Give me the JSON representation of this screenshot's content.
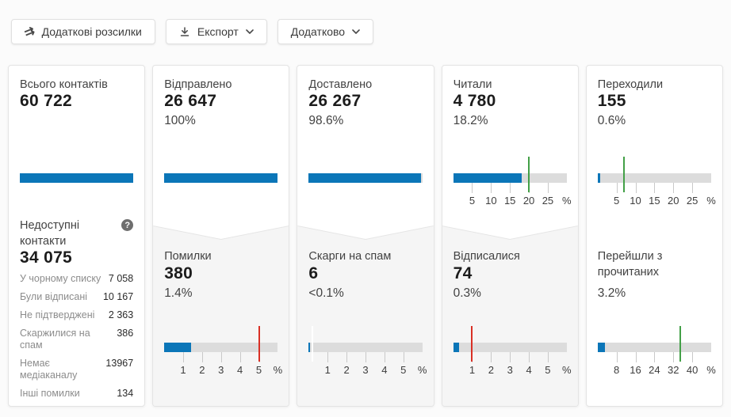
{
  "toolbar": {
    "mailings_button": "Додаткові розсилки",
    "export_button": "Експорт",
    "more_button": "Додатково"
  },
  "colors": {
    "bar_fill": "#0b76b8",
    "bar_track": "#dcdcdc",
    "marker_red": "#d93025",
    "marker_green": "#43a047",
    "marker_white": "#ffffff"
  },
  "cards": [
    {
      "title": "Всього контактів",
      "value": "60 722",
      "meter": {
        "value": 100,
        "max": 100,
        "ticks": [],
        "unit": ""
      },
      "bottom": {
        "title": "Недоступні контакти",
        "help_icon": "?",
        "value": "34 075",
        "rows": [
          {
            "label": "У чорному списку",
            "value": "7 058"
          },
          {
            "label": "Були відписані",
            "value": "10 167"
          },
          {
            "label": "Не підтверджені",
            "value": "2 363"
          },
          {
            "label": "Скаржилися на спам",
            "value": "386"
          },
          {
            "label": "Немає медіаканалу",
            "value": "13967"
          },
          {
            "label": "Інші помилки",
            "value": "134"
          }
        ]
      }
    },
    {
      "title": "Відправлено",
      "value": "26 647",
      "pct": "100%",
      "meter": {
        "value": 100,
        "max": 100,
        "ticks": [],
        "unit": ""
      },
      "bottom": {
        "title": "Помилки",
        "value": "380",
        "pct": "1.4%",
        "meter": {
          "value": 1.4,
          "max": 6,
          "tick_step": 1,
          "ticks": [
            "1",
            "2",
            "3",
            "4",
            "5"
          ],
          "unit": "%",
          "marker": 5,
          "marker_color": "#d93025"
        }
      }
    },
    {
      "title": "Доставлено",
      "value": "26 267",
      "pct": "98.6%",
      "meter": {
        "value": 98.6,
        "max": 100,
        "ticks": [],
        "unit": ""
      },
      "bottom": {
        "title": "Скарги на спам",
        "value": "6",
        "pct": "<0.1%",
        "meter": {
          "value": 0.08,
          "max": 6,
          "tick_step": 1,
          "ticks": [
            "1",
            "2",
            "3",
            "4",
            "5"
          ],
          "unit": "%",
          "marker": 0.2,
          "marker_color": "#ffffff"
        }
      }
    },
    {
      "title": "Читали",
      "value": "4 780",
      "pct": "18.2%",
      "meter": {
        "value": 18.2,
        "max": 30,
        "tick_step": 5,
        "ticks": [
          "5",
          "10",
          "15",
          "20",
          "25"
        ],
        "unit": "%",
        "marker": 20,
        "marker_color": "#43a047"
      },
      "bottom": {
        "title": "Відписалися",
        "value": "74",
        "pct": "0.3%",
        "meter": {
          "value": 0.3,
          "max": 6,
          "tick_step": 1,
          "ticks": [
            "1",
            "2",
            "3",
            "4",
            "5"
          ],
          "unit": "%",
          "marker": 1,
          "marker_color": "#d93025"
        }
      }
    },
    {
      "title": "Переходили",
      "value": "155",
      "pct": "0.6%",
      "meter": {
        "value": 0.6,
        "max": 30,
        "tick_step": 5,
        "ticks": [
          "5",
          "10",
          "15",
          "20",
          "25"
        ],
        "unit": "%",
        "marker": 7,
        "marker_color": "#43a047"
      },
      "bottom": {
        "title": "Перейшли з прочитаних",
        "pct": "3.2%",
        "meter": {
          "value": 3.2,
          "max": 48,
          "tick_step": 8,
          "ticks": [
            "8",
            "16",
            "24",
            "32",
            "40"
          ],
          "unit": "%",
          "marker": 35,
          "marker_color": "#43a047"
        }
      }
    }
  ]
}
